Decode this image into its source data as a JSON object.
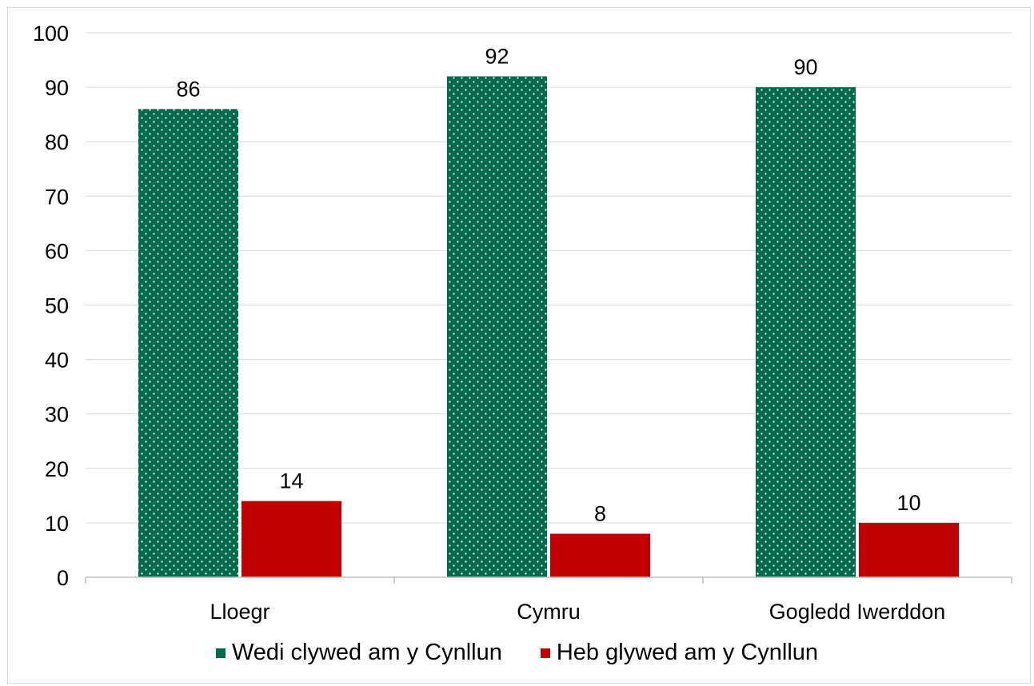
{
  "chart_data": {
    "type": "bar",
    "title": "",
    "xlabel": "",
    "ylabel": "",
    "categories": [
      "Lloegr",
      "Cymru",
      "Gogledd Iwerddon"
    ],
    "series": [
      {
        "name": "Wedi clywed am y Cynllun",
        "values": [
          86,
          92,
          90
        ],
        "color": "#006b4a",
        "pattern": "dotted"
      },
      {
        "name": "Heb glywed am y Cynllun",
        "values": [
          14,
          8,
          10
        ],
        "color": "#c00000"
      }
    ],
    "ylim": [
      0,
      100
    ],
    "yticks": [
      0,
      10,
      20,
      30,
      40,
      50,
      60,
      70,
      80,
      90,
      100
    ],
    "grid": true,
    "legend": "bottom",
    "data_labels": true
  }
}
